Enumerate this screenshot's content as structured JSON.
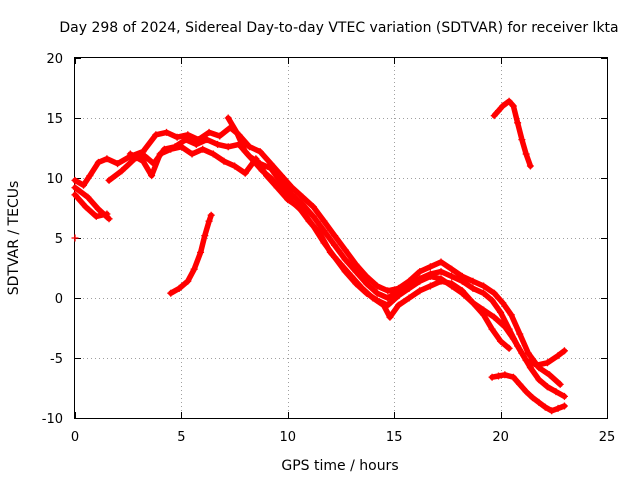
{
  "chart_data": {
    "type": "scatter",
    "title": "Day 298 of 2024, Sidereal Day-to-day VTEC variation (SDTVAR) for receiver lkta",
    "xlabel": "GPS time / hours",
    "ylabel": "SDTVAR / TECUs",
    "xlim": [
      0,
      25
    ],
    "ylim": [
      -10,
      20
    ],
    "xticks": [
      0,
      5,
      10,
      15,
      20,
      25
    ],
    "yticks": [
      -10,
      -5,
      0,
      5,
      10,
      15,
      20
    ],
    "grid": true,
    "marker": "+",
    "series_color": "#ff0000",
    "series": [
      {
        "name": "trace-1",
        "points": [
          [
            0.0,
            9.8
          ],
          [
            0.4,
            9.4
          ],
          [
            0.7,
            10.2
          ],
          [
            1.1,
            11.3
          ],
          [
            1.5,
            11.6
          ],
          [
            2.0,
            11.2
          ],
          [
            2.6,
            11.8
          ],
          [
            3.2,
            12.2
          ],
          [
            3.8,
            13.6
          ],
          [
            4.3,
            13.8
          ],
          [
            4.8,
            13.4
          ],
          [
            5.3,
            13.6
          ],
          [
            5.8,
            13.2
          ],
          [
            6.3,
            13.8
          ],
          [
            6.8,
            13.5
          ],
          [
            7.3,
            14.2
          ],
          [
            7.7,
            13.6
          ],
          [
            8.2,
            12.6
          ],
          [
            8.7,
            12.2
          ],
          [
            9.2,
            11.2
          ],
          [
            9.7,
            10.2
          ],
          [
            10.2,
            9.2
          ],
          [
            10.7,
            8.4
          ],
          [
            11.2,
            7.6
          ],
          [
            11.7,
            6.4
          ],
          [
            12.2,
            5.2
          ],
          [
            12.7,
            4.0
          ],
          [
            13.2,
            2.8
          ],
          [
            13.7,
            1.8
          ],
          [
            14.2,
            1.0
          ],
          [
            14.7,
            0.6
          ],
          [
            15.2,
            0.8
          ],
          [
            15.7,
            1.4
          ],
          [
            16.2,
            2.2
          ],
          [
            16.7,
            2.6
          ],
          [
            17.2,
            3.0
          ],
          [
            17.7,
            2.4
          ],
          [
            18.2,
            1.8
          ],
          [
            18.7,
            1.4
          ],
          [
            19.2,
            1.0
          ],
          [
            19.7,
            0.4
          ],
          [
            20.1,
            -0.4
          ],
          [
            20.5,
            -1.4
          ],
          [
            20.9,
            -3.0
          ],
          [
            21.3,
            -4.6
          ],
          [
            21.8,
            -5.8
          ],
          [
            22.3,
            -6.4
          ],
          [
            22.8,
            -7.2
          ]
        ]
      },
      {
        "name": "trace-2",
        "points": [
          [
            0.0,
            8.6
          ],
          [
            0.5,
            7.6
          ],
          [
            1.0,
            6.8
          ],
          [
            1.5,
            7.0
          ]
        ]
      },
      {
        "name": "trace-3",
        "points": [
          [
            0.0,
            9.2
          ],
          [
            0.6,
            8.4
          ],
          [
            1.1,
            7.4
          ],
          [
            1.6,
            6.6
          ]
        ]
      },
      {
        "name": "trace-4",
        "points": [
          [
            1.6,
            9.8
          ],
          [
            2.2,
            10.6
          ],
          [
            2.8,
            11.6
          ],
          [
            3.3,
            11.8
          ],
          [
            3.7,
            11.2
          ],
          [
            4.2,
            12.4
          ],
          [
            4.7,
            12.6
          ],
          [
            5.2,
            13.2
          ],
          [
            5.7,
            12.8
          ],
          [
            6.2,
            13.2
          ],
          [
            6.7,
            12.8
          ],
          [
            7.2,
            12.6
          ],
          [
            7.7,
            12.8
          ],
          [
            8.2,
            11.8
          ],
          [
            8.7,
            11.2
          ],
          [
            9.2,
            10.8
          ],
          [
            9.7,
            9.6
          ],
          [
            10.2,
            8.6
          ],
          [
            10.7,
            7.8
          ],
          [
            11.2,
            6.8
          ],
          [
            11.7,
            5.6
          ],
          [
            12.2,
            4.4
          ],
          [
            12.7,
            3.2
          ],
          [
            13.2,
            2.2
          ],
          [
            13.7,
            1.2
          ],
          [
            14.2,
            0.4
          ],
          [
            14.7,
            0.0
          ],
          [
            15.2,
            0.6
          ],
          [
            15.7,
            1.2
          ],
          [
            16.2,
            1.6
          ],
          [
            16.7,
            2.0
          ],
          [
            17.2,
            2.2
          ],
          [
            17.7,
            1.8
          ],
          [
            18.2,
            1.4
          ],
          [
            18.7,
            0.8
          ],
          [
            19.2,
            0.4
          ],
          [
            19.6,
            -0.2
          ],
          [
            20.0,
            -1.2
          ],
          [
            20.4,
            -2.6
          ],
          [
            20.8,
            -4.0
          ],
          [
            21.2,
            -5.2
          ],
          [
            21.7,
            -5.6
          ],
          [
            22.2,
            -5.4
          ],
          [
            22.7,
            -4.8
          ],
          [
            23.0,
            -4.4
          ]
        ]
      },
      {
        "name": "trace-5",
        "points": [
          [
            2.6,
            12.0
          ],
          [
            3.2,
            11.4
          ],
          [
            3.6,
            10.2
          ],
          [
            4.0,
            12.0
          ],
          [
            4.5,
            12.4
          ],
          [
            5.0,
            12.6
          ],
          [
            5.5,
            12.0
          ],
          [
            6.0,
            12.4
          ],
          [
            6.5,
            12.0
          ],
          [
            7.0,
            11.4
          ],
          [
            7.5,
            11.0
          ],
          [
            8.0,
            10.4
          ],
          [
            8.5,
            11.6
          ],
          [
            9.0,
            10.2
          ],
          [
            9.5,
            9.2
          ],
          [
            10.0,
            8.2
          ],
          [
            10.5,
            7.6
          ],
          [
            11.0,
            6.4
          ],
          [
            11.5,
            5.4
          ],
          [
            12.0,
            3.8
          ],
          [
            12.5,
            2.8
          ],
          [
            13.0,
            1.8
          ],
          [
            13.5,
            0.8
          ],
          [
            14.0,
            0.0
          ],
          [
            14.5,
            -0.6
          ],
          [
            14.8,
            -1.6
          ],
          [
            15.2,
            -0.6
          ],
          [
            15.7,
            0.0
          ],
          [
            16.2,
            0.6
          ],
          [
            16.7,
            1.0
          ],
          [
            17.2,
            1.4
          ],
          [
            17.7,
            1.2
          ],
          [
            18.2,
            0.6
          ],
          [
            18.7,
            -0.4
          ],
          [
            19.2,
            -1.4
          ],
          [
            19.6,
            -2.6
          ],
          [
            20.0,
            -3.6
          ],
          [
            20.4,
            -4.2
          ]
        ]
      },
      {
        "name": "trace-6",
        "points": [
          [
            7.2,
            15.0
          ],
          [
            7.6,
            13.8
          ],
          [
            8.0,
            12.2
          ],
          [
            8.4,
            11.4
          ],
          [
            8.8,
            10.6
          ],
          [
            9.2,
            10.0
          ],
          [
            9.7,
            9.0
          ],
          [
            10.2,
            8.0
          ],
          [
            10.7,
            7.2
          ],
          [
            11.2,
            6.0
          ],
          [
            11.7,
            4.6
          ],
          [
            12.2,
            3.4
          ],
          [
            12.7,
            2.2
          ],
          [
            13.2,
            1.2
          ],
          [
            13.7,
            0.4
          ],
          [
            14.2,
            -0.2
          ],
          [
            14.7,
            -0.6
          ],
          [
            15.2,
            0.2
          ],
          [
            15.7,
            0.8
          ],
          [
            16.2,
            1.4
          ],
          [
            16.7,
            1.8
          ],
          [
            17.2,
            1.6
          ],
          [
            17.7,
            1.0
          ],
          [
            18.2,
            0.4
          ],
          [
            18.7,
            -0.4
          ],
          [
            19.2,
            -1.0
          ],
          [
            19.7,
            -1.6
          ],
          [
            20.2,
            -2.4
          ],
          [
            20.6,
            -3.4
          ],
          [
            21.0,
            -4.6
          ],
          [
            21.4,
            -5.8
          ],
          [
            21.8,
            -6.8
          ],
          [
            22.2,
            -7.4
          ],
          [
            22.6,
            -7.8
          ],
          [
            23.0,
            -8.2
          ]
        ]
      },
      {
        "name": "trace-7",
        "points": [
          [
            4.5,
            0.4
          ],
          [
            4.9,
            0.8
          ],
          [
            5.3,
            1.4
          ],
          [
            5.6,
            2.4
          ],
          [
            5.9,
            3.8
          ],
          [
            6.1,
            5.2
          ],
          [
            6.3,
            6.4
          ],
          [
            6.4,
            6.9
          ]
        ]
      },
      {
        "name": "trace-8",
        "points": [
          [
            19.7,
            15.2
          ],
          [
            19.9,
            15.6
          ],
          [
            20.1,
            16.0
          ],
          [
            20.4,
            16.4
          ],
          [
            20.6,
            16.0
          ],
          [
            20.8,
            14.6
          ],
          [
            21.0,
            13.2
          ],
          [
            21.2,
            12.0
          ],
          [
            21.4,
            11.0
          ]
        ]
      },
      {
        "name": "trace-9",
        "points": [
          [
            19.6,
            -6.6
          ],
          [
            19.9,
            -6.5
          ],
          [
            20.2,
            -6.4
          ],
          [
            20.6,
            -6.6
          ],
          [
            20.9,
            -7.2
          ],
          [
            21.2,
            -7.8
          ],
          [
            21.5,
            -8.3
          ],
          [
            21.8,
            -8.7
          ],
          [
            22.1,
            -9.1
          ],
          [
            22.4,
            -9.4
          ],
          [
            22.7,
            -9.2
          ],
          [
            23.0,
            -9.0
          ]
        ]
      },
      {
        "name": "trace-10",
        "points": [
          [
            0.0,
            5.0
          ]
        ]
      }
    ]
  }
}
